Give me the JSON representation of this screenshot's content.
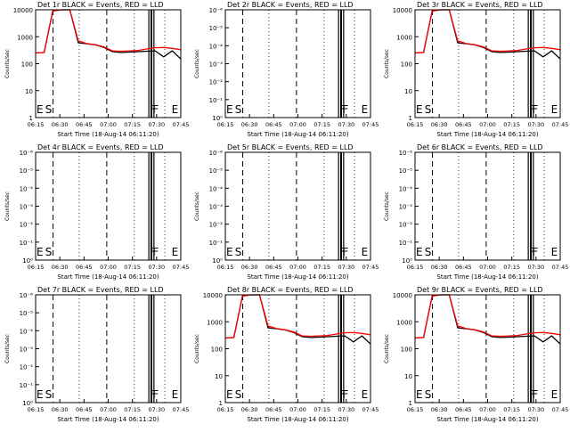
{
  "chart_data": [
    {
      "type": "line",
      "title": "Det 1r BLACK = Events, RED = LLD",
      "xlabel": "Start Time (18-Aug-14 06:11:20)",
      "ylabel": "Counts/sec",
      "x_ticks": [
        "06:15",
        "06:30",
        "06:45",
        "07:00",
        "07:15",
        "07:30",
        "07:45"
      ],
      "y_ticks": [
        "1",
        "10",
        "100",
        "1000",
        "10000"
      ],
      "y_scale": "log",
      "markers": [
        "E",
        "S",
        "F",
        "F",
        "E"
      ],
      "series": [
        {
          "color": "#000000",
          "values": [
            250,
            260,
            9000,
            12000,
            10000,
            600,
            550,
            500,
            400,
            280,
            260,
            270,
            280,
            290,
            300,
            180,
            300,
            150
          ]
        },
        {
          "color": "#ff0000",
          "values": [
            250,
            260,
            9000,
            12000,
            11000,
            700,
            560,
            510,
            420,
            300,
            290,
            300,
            310,
            350,
            390,
            400,
            370,
            330
          ]
        }
      ]
    },
    {
      "type": "line",
      "title": "Det 2r BLACK = Events, RED = LLD",
      "xlabel": "Start Time (18-Aug-14 06:11:20)",
      "ylabel": "Counts/sec",
      "x_ticks": [
        "06:15",
        "06:30",
        "06:45",
        "07:00",
        "07:15",
        "07:30",
        "07:45"
      ],
      "y_ticks": [
        "10⁰",
        "10⁻¹",
        "10⁻²",
        "10⁻³",
        "10⁻⁴",
        "10⁻⁵",
        "10⁻⁶"
      ],
      "markers": [
        "E",
        "S",
        "F",
        "F",
        "E"
      ],
      "series": []
    },
    {
      "type": "line",
      "title": "Det 3r BLACK = Events, RED = LLD",
      "xlabel": "Start Time (18-Aug-14 06:11:20)",
      "ylabel": "Counts/sec",
      "x_ticks": [
        "06:15",
        "06:30",
        "06:45",
        "07:00",
        "07:15",
        "07:30",
        "07:45"
      ],
      "y_ticks": [
        "1",
        "10",
        "100",
        "1000",
        "10000"
      ],
      "y_scale": "log",
      "markers": [
        "E",
        "S",
        "F",
        "F",
        "E"
      ],
      "series": [
        {
          "color": "#000000",
          "values": [
            250,
            260,
            9000,
            12000,
            10000,
            600,
            550,
            500,
            400,
            280,
            260,
            270,
            280,
            290,
            300,
            180,
            300,
            150
          ]
        },
        {
          "color": "#ff0000",
          "values": [
            250,
            260,
            9000,
            12000,
            11000,
            700,
            560,
            510,
            420,
            300,
            290,
            300,
            310,
            350,
            390,
            400,
            370,
            330
          ]
        }
      ]
    },
    {
      "type": "line",
      "title": "Det 4r BLACK = Events, RED = LLD",
      "xlabel": "Start Time (18-Aug-14 06:11:20)",
      "ylabel": "Counts/sec",
      "x_ticks": [
        "06:15",
        "06:30",
        "06:45",
        "07:00",
        "07:15",
        "07:30",
        "07:45"
      ],
      "y_ticks": [
        "10⁰",
        "10⁻¹",
        "10⁻²",
        "10⁻³",
        "10⁻⁴",
        "10⁻⁵",
        "10⁻⁶"
      ],
      "markers": [
        "E",
        "S",
        "F",
        "F",
        "E"
      ],
      "series": []
    },
    {
      "type": "line",
      "title": "Det 5r BLACK = Events, RED = LLD",
      "xlabel": "Start Time (18-Aug-14 06:11:20)",
      "ylabel": "Counts/sec",
      "x_ticks": [
        "06:15",
        "06:30",
        "06:45",
        "07:00",
        "07:15",
        "07:30",
        "07:45"
      ],
      "y_ticks": [
        "10⁰",
        "10⁻¹",
        "10⁻²",
        "10⁻³",
        "10⁻⁴",
        "10⁻⁵",
        "10⁻⁶"
      ],
      "markers": [
        "E",
        "S",
        "F",
        "F",
        "E"
      ],
      "series": []
    },
    {
      "type": "line",
      "title": "Det 6r BLACK = Events, RED = LLD",
      "xlabel": "Start Time (18-Aug-14 06:11:20)",
      "ylabel": "Counts/sec",
      "x_ticks": [
        "06:15",
        "06:30",
        "06:45",
        "07:00",
        "07:15",
        "07:30",
        "07:45"
      ],
      "y_ticks": [
        "10⁰",
        "10⁻¹",
        "10⁻²",
        "10⁻³",
        "10⁻⁴",
        "10⁻⁵",
        "10⁻⁶"
      ],
      "markers": [
        "E",
        "S",
        "F",
        "F",
        "E"
      ],
      "series": []
    },
    {
      "type": "line",
      "title": "Det 7r BLACK = Events, RED = LLD",
      "xlabel": "Start Time (18-Aug-14 06:11:20)",
      "ylabel": "Counts/sec",
      "x_ticks": [
        "06:15",
        "06:30",
        "06:45",
        "07:00",
        "07:15",
        "07:30",
        "07:45"
      ],
      "y_ticks": [
        "10⁰",
        "10⁻¹",
        "10⁻²",
        "10⁻³",
        "10⁻⁴",
        "10⁻⁵",
        "10⁻⁶"
      ],
      "markers": [
        "E",
        "S",
        "F",
        "F",
        "E"
      ],
      "series": []
    },
    {
      "type": "line",
      "title": "Det 8r BLACK = Events, RED = LLD",
      "xlabel": "Start Time (18-Aug-14 06:11:20)",
      "ylabel": "Counts/sec",
      "x_ticks": [
        "06:15",
        "06:30",
        "06:45",
        "07:00",
        "07:15",
        "07:30",
        "07:45"
      ],
      "y_ticks": [
        "1",
        "10",
        "100",
        "1000",
        "10000"
      ],
      "y_scale": "log",
      "markers": [
        "E",
        "S",
        "F",
        "F",
        "E"
      ],
      "series": [
        {
          "color": "#000000",
          "values": [
            250,
            260,
            9000,
            12000,
            10000,
            600,
            550,
            500,
            400,
            280,
            260,
            270,
            280,
            290,
            300,
            180,
            300,
            150
          ]
        },
        {
          "color": "#ff0000",
          "values": [
            250,
            260,
            9000,
            12000,
            11000,
            700,
            560,
            510,
            420,
            300,
            290,
            300,
            310,
            350,
            390,
            400,
            370,
            330
          ]
        }
      ]
    },
    {
      "type": "line",
      "title": "Det 9r BLACK = Events, RED = LLD",
      "xlabel": "Start Time (18-Aug-14 06:11:20)",
      "ylabel": "Counts/sec",
      "x_ticks": [
        "06:15",
        "06:30",
        "06:45",
        "07:00",
        "07:15",
        "07:30",
        "07:45"
      ],
      "y_ticks": [
        "1",
        "10",
        "100",
        "1000",
        "10000"
      ],
      "y_scale": "log",
      "markers": [
        "E",
        "S",
        "F",
        "F",
        "E"
      ],
      "series": [
        {
          "color": "#000000",
          "values": [
            250,
            260,
            9000,
            12000,
            10000,
            600,
            550,
            500,
            400,
            280,
            260,
            270,
            280,
            290,
            300,
            180,
            300,
            150
          ]
        },
        {
          "color": "#ff0000",
          "values": [
            250,
            260,
            9000,
            12000,
            11000,
            700,
            560,
            510,
            420,
            300,
            290,
            300,
            310,
            350,
            390,
            400,
            370,
            330
          ]
        }
      ]
    }
  ]
}
